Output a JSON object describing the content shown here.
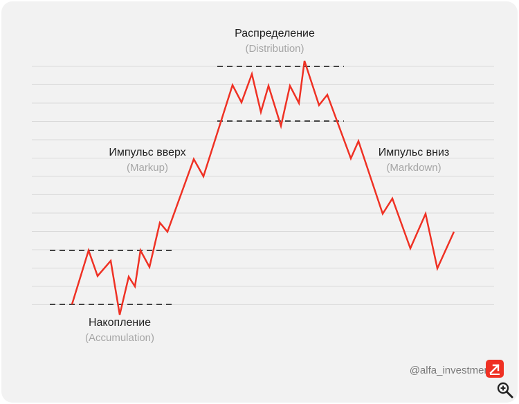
{
  "phases": {
    "accumulation": {
      "ru": "Накопление",
      "en": "(Accumulation)"
    },
    "markup": {
      "ru": "Импульс вверх",
      "en": "(Markup)"
    },
    "distribution": {
      "ru": "Распределение",
      "en": "(Distribution)"
    },
    "markdown": {
      "ru": "Импульс вниз",
      "en": "(Markdown)"
    }
  },
  "watermark": "@alfa_investment",
  "colors": {
    "price_line": "#ef3124",
    "grid": "#d9d9d9",
    "range_dash": "#444444",
    "background": "#f2f2f2",
    "logo": "#ef3124"
  },
  "icons": {
    "logo": "arrow-up-right-icon",
    "zoom": "zoom-in-icon"
  }
}
